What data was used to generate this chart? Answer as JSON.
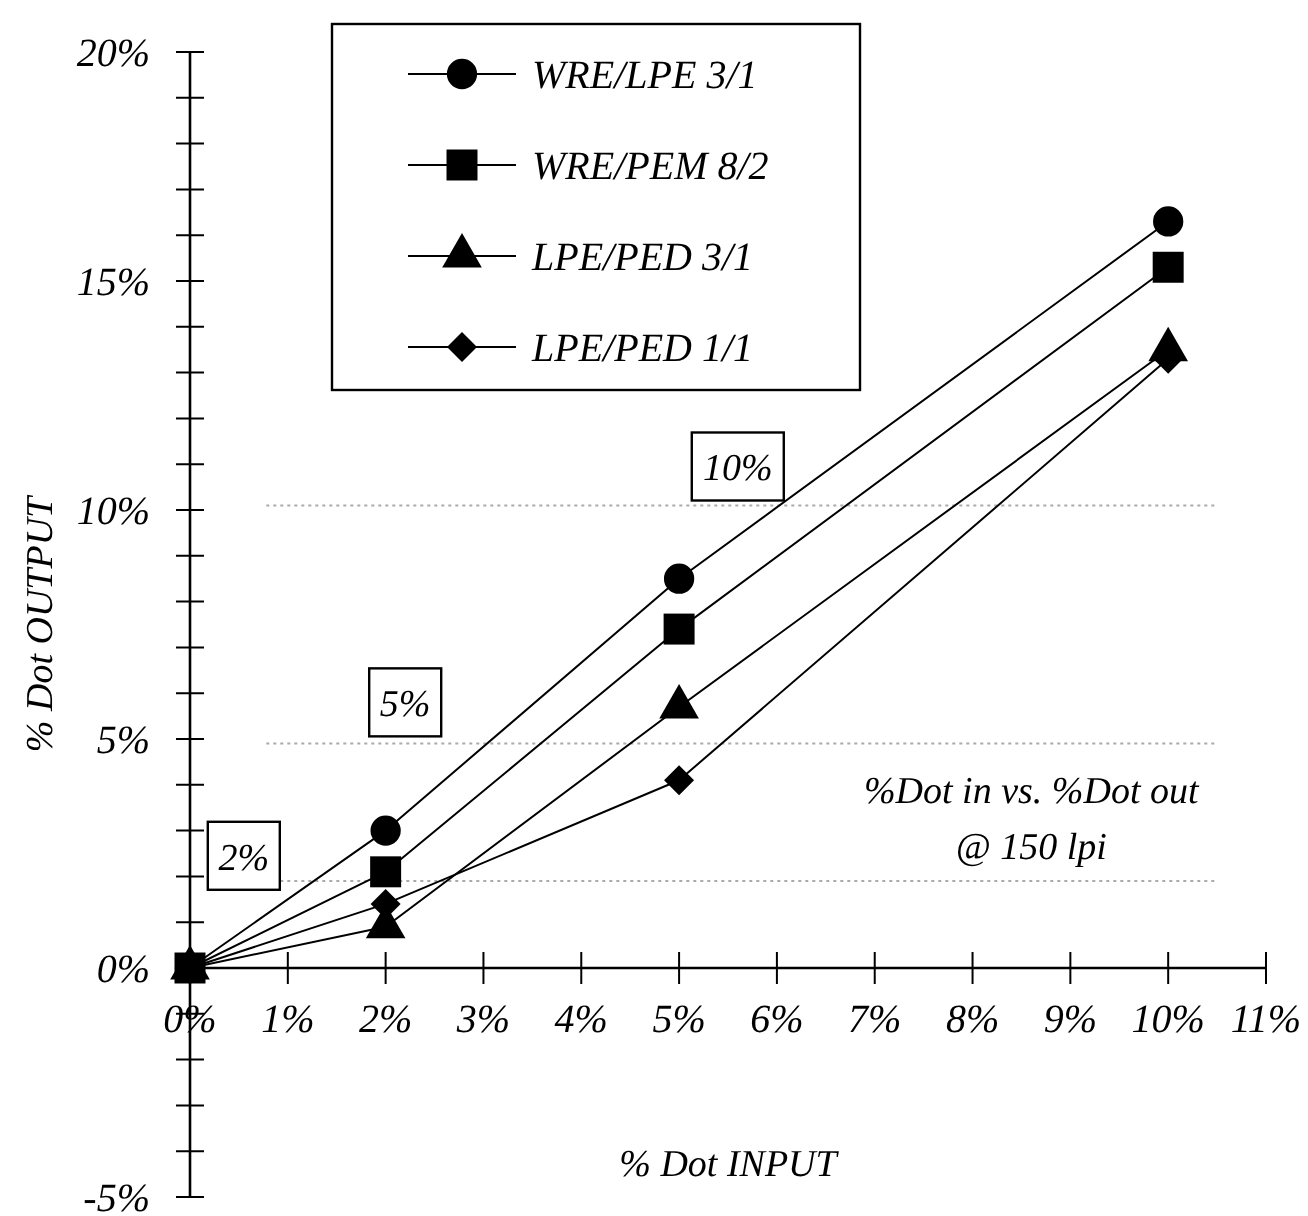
{
  "chart_data": {
    "type": "line",
    "xlabel": "% Dot INPUT",
    "ylabel": "% Dot OUTPUT",
    "x": [
      0,
      2,
      5,
      10
    ],
    "series": [
      {
        "name": "WRE/LPE 3/1",
        "color": "#000000",
        "marker": "circle",
        "values": [
          0,
          3.0,
          8.5,
          16.3
        ]
      },
      {
        "name": "WRE/PEM 8/2",
        "color": "#000000",
        "marker": "square",
        "values": [
          0,
          2.1,
          7.4,
          15.3
        ]
      },
      {
        "name": "LPE/PED 3/1",
        "color": "#000000",
        "marker": "triangle",
        "values": [
          0,
          0.9,
          5.7,
          13.5
        ]
      },
      {
        "name": "LPE/PED 1/1",
        "color": "#000000",
        "marker": "diamond",
        "values": [
          0,
          1.4,
          4.1,
          13.3
        ]
      }
    ],
    "xlim": [
      0,
      11
    ],
    "xticks": [
      {
        "value": 0,
        "label": "0%"
      },
      {
        "value": 1,
        "label": "1%"
      },
      {
        "value": 2,
        "label": "2%"
      },
      {
        "value": 3,
        "label": "3%"
      },
      {
        "value": 4,
        "label": "4%"
      },
      {
        "value": 5,
        "label": "5%"
      },
      {
        "value": 6,
        "label": "6%"
      },
      {
        "value": 7,
        "label": "7%"
      },
      {
        "value": 8,
        "label": "8%"
      },
      {
        "value": 9,
        "label": "9%"
      },
      {
        "value": 10,
        "label": "10%"
      },
      {
        "value": 11,
        "label": "11%"
      }
    ],
    "ylim": [
      -5,
      20
    ],
    "yticks": [
      {
        "value": -5,
        "label": "-5%"
      },
      {
        "value": -4,
        "label": null
      },
      {
        "value": -3,
        "label": null
      },
      {
        "value": -2,
        "label": null
      },
      {
        "value": -1,
        "label": null
      },
      {
        "value": 0,
        "label": "0%"
      },
      {
        "value": 1,
        "label": null
      },
      {
        "value": 2,
        "label": null
      },
      {
        "value": 3,
        "label": null
      },
      {
        "value": 4,
        "label": null
      },
      {
        "value": 5,
        "label": "5%"
      },
      {
        "value": 6,
        "label": null
      },
      {
        "value": 7,
        "label": null
      },
      {
        "value": 8,
        "label": null
      },
      {
        "value": 9,
        "label": null
      },
      {
        "value": 10,
        "label": "10%"
      },
      {
        "value": 11,
        "label": null
      },
      {
        "value": 12,
        "label": null
      },
      {
        "value": 13,
        "label": null
      },
      {
        "value": 14,
        "label": null
      },
      {
        "value": 15,
        "label": "15%"
      },
      {
        "value": 16,
        "label": null
      },
      {
        "value": 17,
        "label": null
      },
      {
        "value": 18,
        "label": null
      },
      {
        "value": 19,
        "label": null
      },
      {
        "value": 20,
        "label": "20%"
      }
    ],
    "ref_lines": [
      {
        "axis": "y",
        "value": 1.9,
        "label": "2%",
        "color": "#aaaaaa",
        "line_style": "dotted"
      },
      {
        "axis": "y",
        "value": 4.9,
        "label": "5%",
        "color": "#aaaaaa",
        "line_style": "dotted"
      },
      {
        "axis": "y",
        "value": 10.1,
        "label": "10%",
        "color": "#aaaaaa",
        "line_style": "dotted"
      }
    ],
    "annotations": [
      "%Dot in vs. %Dot out\n@ 150 lpi"
    ],
    "legend": "top",
    "grid": false,
    "line_style": "solid"
  }
}
